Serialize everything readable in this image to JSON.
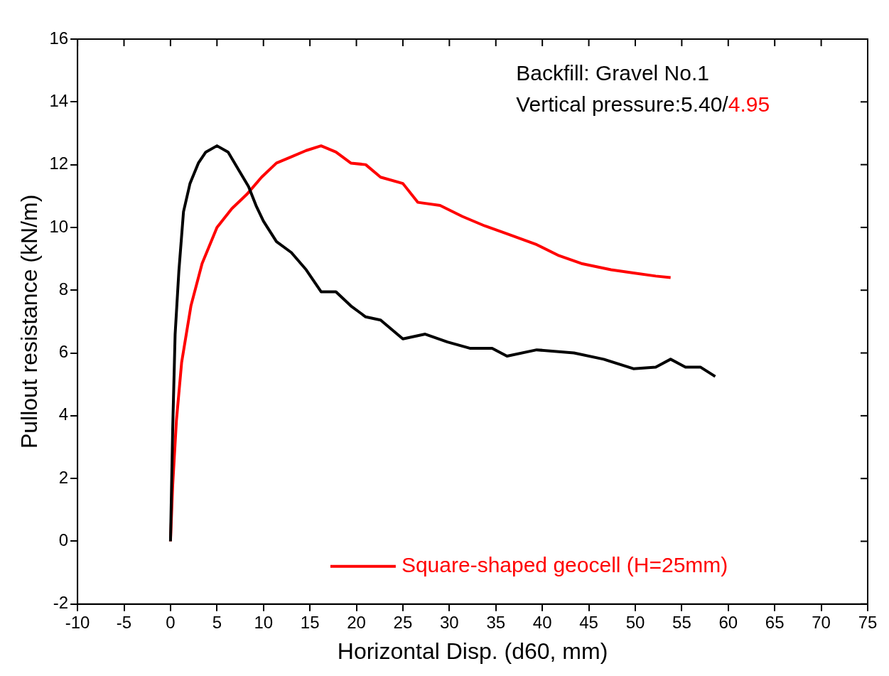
{
  "chart_data": {
    "type": "line",
    "xlabel": "Horizontal Disp. (d60, mm)",
    "ylabel": "Pullout resistance (kN/m)",
    "annotations": [
      "Backfill: Gravel No.1",
      "Vertical pressure:5.40/",
      "4.95"
    ],
    "xlim": [
      -10,
      75
    ],
    "xticks": [
      -10,
      -5,
      0,
      5,
      10,
      15,
      20,
      25,
      30,
      35,
      40,
      45,
      50,
      55,
      60,
      65,
      70,
      75
    ],
    "ylim": [
      -2,
      16
    ],
    "yticks": [
      -2,
      0,
      2,
      4,
      6,
      8,
      10,
      12,
      14,
      16
    ],
    "grid": false,
    "legend": "bottom right",
    "marker": "none",
    "line_style": "solid",
    "series": [
      {
        "color": "#000000",
        "x": [
          0,
          0.24,
          0.5,
          0.9,
          1.4,
          2.1,
          3,
          3.8,
          5,
          6.2,
          7.4,
          8.4,
          9.2,
          10,
          11.4,
          13,
          14.6,
          16.2,
          17.8,
          19.4,
          21,
          22.6,
          25,
          27.4,
          29.8,
          32.2,
          34.6,
          36.2,
          39.4,
          43.4,
          46.6,
          49.8,
          52.2,
          53.8,
          55.4,
          57,
          58.6
        ],
        "values": [
          0,
          3.6,
          6.6,
          8.6,
          10.5,
          11.4,
          12.05,
          12.4,
          12.6,
          12.4,
          11.8,
          11.3,
          10.7,
          10.2,
          9.55,
          9.2,
          8.65,
          7.95,
          7.95,
          7.5,
          7.15,
          7.05,
          6.45,
          6.6,
          6.35,
          6.15,
          6.15,
          5.9,
          6.1,
          6.0,
          5.8,
          5.5,
          5.55,
          5.8,
          5.55,
          5.55,
          5.25
        ]
      },
      {
        "name": "Square-shaped geocell (H=25mm)",
        "color": "#ff0000",
        "x": [
          0,
          0.24,
          0.64,
          1.2,
          2.2,
          3.4,
          5,
          6.6,
          8.2,
          9.8,
          11.4,
          13,
          14.6,
          16.2,
          17.8,
          19.4,
          21,
          22.6,
          25,
          26.6,
          29,
          31.4,
          33.8,
          36.2,
          39.4,
          41.8,
          44.2,
          47.4,
          49.8,
          52.2,
          53.8
        ],
        "values": [
          0,
          1.8,
          3.85,
          5.7,
          7.5,
          8.85,
          10,
          10.6,
          11.05,
          11.6,
          12.05,
          12.25,
          12.45,
          12.6,
          12.4,
          12.05,
          12,
          11.6,
          11.4,
          10.8,
          10.7,
          10.35,
          10.05,
          9.8,
          9.45,
          9.1,
          8.85,
          8.65,
          8.55,
          8.45,
          8.4
        ]
      }
    ]
  }
}
